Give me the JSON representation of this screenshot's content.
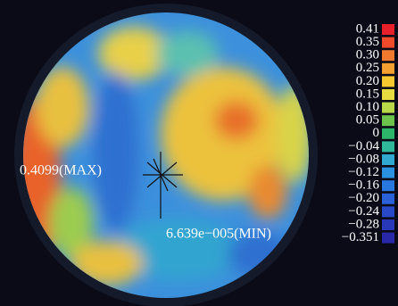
{
  "chart_data": {
    "type": "surface-map",
    "annotations": [
      "0.4099(MAX)",
      "6.639e−005(MIN)"
    ],
    "colorbar": {
      "ticks": [
        0.41,
        0.35,
        {
          "value": 0.3,
          "label": "0.30"
        },
        0.25,
        {
          "value": 0.2,
          "label": "0.20"
        },
        0.15,
        {
          "value": 0.1,
          "label": "0.10"
        },
        0.05,
        0,
        {
          "value": -0.04,
          "label": "−0.04"
        },
        {
          "value": -0.08,
          "label": "−0.08"
        },
        {
          "value": -0.12,
          "label": "−0.12"
        },
        {
          "value": -0.16,
          "label": "−0.16"
        },
        {
          "value": -0.2,
          "label": "−0.20"
        },
        {
          "value": -0.24,
          "label": "−0.24"
        },
        {
          "value": -0.28,
          "label": "−0.28"
        },
        {
          "value": -0.351,
          "label": "−0.351"
        }
      ],
      "colors": [
        "#e8202a",
        "#f04a2a",
        "#f07a30",
        "#f4a030",
        "#f6c830",
        "#e4dc40",
        "#b8d84a",
        "#6cc24a",
        "#2db56a",
        "#30b89a",
        "#30a8d0",
        "#2a90e0",
        "#2878e0",
        "#2a60d8",
        "#2848c8",
        "#2838b8",
        "#2828a8"
      ]
    }
  }
}
